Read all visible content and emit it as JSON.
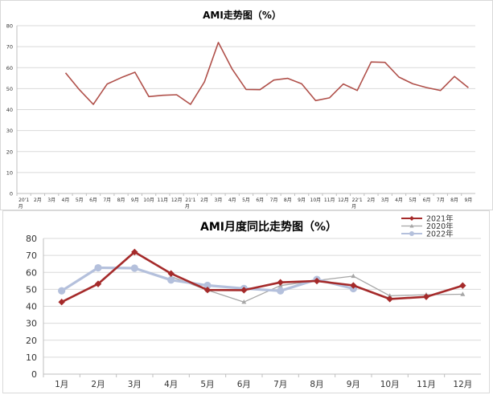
{
  "chart_data": [
    {
      "type": "line",
      "title": "AMI走势图（%）",
      "ylim": [
        0,
        80
      ],
      "yticks": [
        0,
        10,
        20,
        30,
        40,
        50,
        60,
        70,
        80
      ],
      "categories": [
        "20'1月",
        "2月",
        "3月",
        "4月",
        "5月",
        "6月",
        "7月",
        "8月",
        "9月",
        "10月",
        "11月",
        "12月",
        "21'1月",
        "2月",
        "3月",
        "4月",
        "5月",
        "6月",
        "7月",
        "8月",
        "9月",
        "10月",
        "11月",
        "12月",
        "22'1月",
        "2月",
        "3月",
        "4月",
        "5月",
        "6月",
        "7月",
        "8月",
        "9月"
      ],
      "series": [
        {
          "color": "#b0504a",
          "values": [
            null,
            null,
            null,
            57.5,
            49.5,
            42.5,
            52.2,
            55.2,
            57.8,
            46.2,
            46.8,
            47.1,
            42.5,
            53.2,
            72,
            59.3,
            49.6,
            49.5,
            54.1,
            54.9,
            52.3,
            44.3,
            45.6,
            52.2,
            49.1,
            62.7,
            62.5,
            55.5,
            52.3,
            50.5,
            49.1,
            55.8,
            50.4
          ]
        }
      ],
      "grid": true
    },
    {
      "type": "line",
      "title": "AMI月度同比走势图（%）",
      "ylim": [
        0,
        80
      ],
      "yticks": [
        0,
        10,
        20,
        30,
        40,
        50,
        60,
        70,
        80
      ],
      "categories": [
        "1月",
        "2月",
        "3月",
        "4月",
        "5月",
        "6月",
        "7月",
        "8月",
        "9月",
        "10月",
        "11月",
        "12月"
      ],
      "legend_position": "top-right",
      "grid": true,
      "series": [
        {
          "name": "2021年",
          "color": "#a52a2a",
          "marker": "diamond",
          "values": [
            42.5,
            53.2,
            72,
            59.3,
            49.6,
            49.5,
            54.1,
            54.9,
            52.3,
            44.3,
            45.6,
            52.2
          ]
        },
        {
          "name": "2020年",
          "color": "#a6a6a6",
          "marker": "triangle",
          "values": [
            null,
            null,
            null,
            57.5,
            49.5,
            42.5,
            52.2,
            55.2,
            57.8,
            46.2,
            46.8,
            47.1
          ]
        },
        {
          "name": "2022年",
          "color": "#b4c0dc",
          "marker": "circle",
          "values": [
            49.1,
            62.7,
            62.5,
            55.5,
            52.3,
            50.5,
            49.1,
            55.8,
            50.4,
            null,
            null,
            null
          ]
        }
      ]
    }
  ]
}
